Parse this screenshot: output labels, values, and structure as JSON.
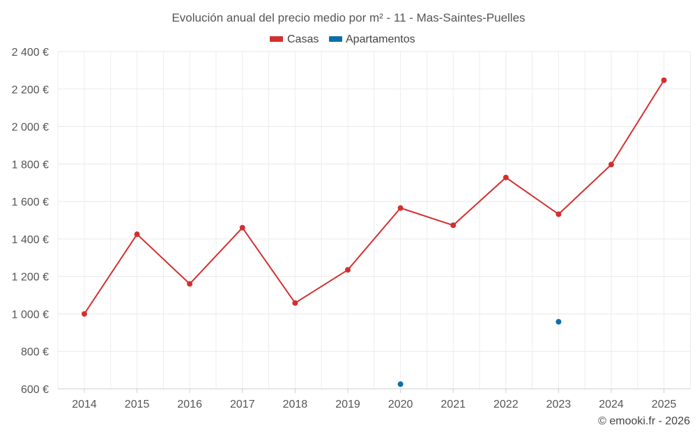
{
  "chart_data": {
    "type": "line",
    "title": "Evolución anual del precio medio por m² - 11 - Mas-Saintes-Puelles",
    "categories": [
      "2014",
      "2015",
      "2016",
      "2017",
      "2018",
      "2019",
      "2020",
      "2021",
      "2022",
      "2023",
      "2024",
      "2025"
    ],
    "series": [
      {
        "name": "Casas",
        "color": "#d32f2f",
        "values": [
          1000,
          1425,
          1160,
          1460,
          1058,
          1235,
          1565,
          1473,
          1728,
          1532,
          1797,
          2247
        ]
      },
      {
        "name": "Apartamentos",
        "color": "#0d6fa8",
        "values": [
          null,
          null,
          null,
          null,
          null,
          null,
          625,
          null,
          null,
          958,
          null,
          null
        ]
      }
    ],
    "ylim": [
      600,
      2400
    ],
    "yticks": [
      600,
      800,
      1000,
      1200,
      1400,
      1600,
      1800,
      2000,
      2200,
      2400
    ],
    "ytick_labels": [
      "600 €",
      "800 €",
      "1 000 €",
      "1 200 €",
      "1 400 €",
      "1 600 €",
      "1 800 €",
      "2 000 €",
      "2 200 €",
      "2 400 €"
    ],
    "grid": true,
    "legend_position": "top-center",
    "xlabel": "",
    "ylabel": ""
  },
  "credit": "© emooki.fr - 2026"
}
